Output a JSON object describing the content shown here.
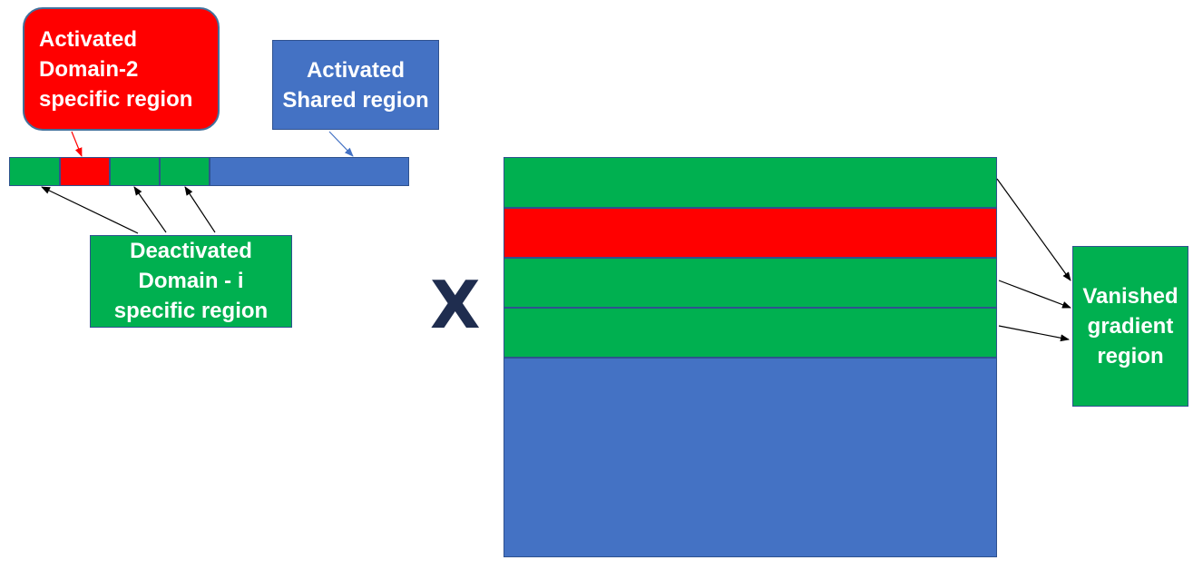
{
  "labels": {
    "activated_domain2": [
      "Activated",
      "Domain-2",
      "specific region"
    ],
    "activated_shared": [
      "Activated",
      "Shared region"
    ],
    "deactivated_domain_i": [
      "Deactivated",
      "Domain - i",
      "specific region"
    ],
    "vanished_gradient": [
      "Vanished",
      "gradient",
      "region"
    ]
  },
  "operator_symbol": "X",
  "vector_segments": [
    {
      "region": "domain-1",
      "color": "#00b050"
    },
    {
      "region": "domain-2",
      "color": "#ff0000"
    },
    {
      "region": "domain-3",
      "color": "#00b050"
    },
    {
      "region": "domain-4",
      "color": "#00b050"
    },
    {
      "region": "shared",
      "color": "#4472c4"
    }
  ],
  "matrix_rows": [
    {
      "region": "domain-1",
      "color": "#00b050"
    },
    {
      "region": "domain-2",
      "color": "#ff0000"
    },
    {
      "region": "domain-3",
      "color": "#00b050"
    },
    {
      "region": "domain-4",
      "color": "#00b050"
    },
    {
      "region": "shared",
      "color": "#4472c4"
    }
  ],
  "colors": {
    "domain_specific": "#00b050",
    "activated_domain": "#ff0000",
    "shared": "#4472c4",
    "border": "#2f528f"
  }
}
